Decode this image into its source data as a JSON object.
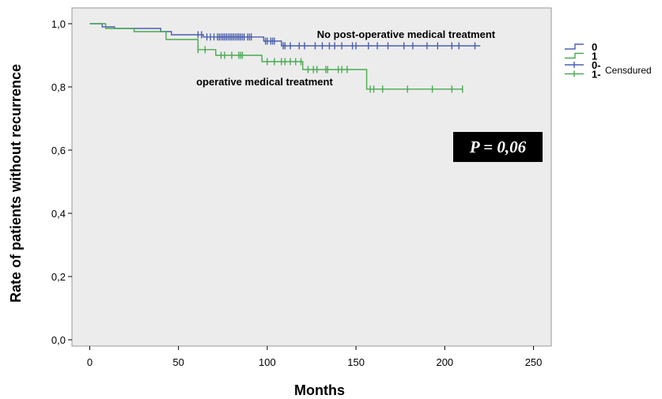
{
  "chart_data": {
    "type": "line",
    "xlabel": "Months",
    "ylabel": "Rate of patients without recurrence",
    "xlim": [
      -10,
      260
    ],
    "ylim": [
      -0.02,
      1.05
    ],
    "x_ticks": [
      0,
      50,
      100,
      150,
      200,
      250
    ],
    "y_ticks": [
      0.0,
      0.2,
      0.4,
      0.6,
      0.8,
      1.0
    ],
    "x_tick_labels": [
      "0",
      "50",
      "100",
      "150",
      "200",
      "250"
    ],
    "y_tick_labels": [
      "0,0",
      "0,2",
      "0,4",
      "0,6",
      "0,8",
      "1,0"
    ],
    "grid": false,
    "background": "#ececec",
    "series": [
      {
        "name": "0",
        "color": "#4a5fb0",
        "steps": [
          [
            0,
            1.0
          ],
          [
            7,
            0.99
          ],
          [
            14,
            0.985
          ],
          [
            40,
            0.975
          ],
          [
            46,
            0.965
          ],
          [
            64,
            0.958
          ],
          [
            98,
            0.945
          ],
          [
            108,
            0.93
          ],
          [
            220,
            0.93
          ]
        ],
        "censored": [
          61,
          63,
          66,
          68,
          70,
          72,
          73,
          74,
          75,
          76,
          77,
          78,
          79,
          80,
          81,
          82,
          83,
          84,
          85,
          86,
          87,
          89,
          90,
          91,
          99,
          100,
          102,
          103,
          104,
          109,
          110,
          113,
          118,
          121,
          127,
          131,
          135,
          138,
          142,
          148,
          150,
          157,
          162,
          168,
          177,
          182,
          190,
          196,
          204,
          208,
          217
        ]
      },
      {
        "name": "1",
        "color": "#4aaa52",
        "steps": [
          [
            0,
            1.0
          ],
          [
            9,
            0.985
          ],
          [
            25,
            0.975
          ],
          [
            43,
            0.95
          ],
          [
            61,
            0.918
          ],
          [
            71,
            0.9
          ],
          [
            97,
            0.88
          ],
          [
            120,
            0.855
          ],
          [
            156,
            0.793
          ],
          [
            210,
            0.793
          ]
        ],
        "censored": [
          61,
          65,
          74,
          76,
          80,
          84,
          85,
          86,
          100,
          104,
          108,
          110,
          113,
          116,
          119,
          123,
          126,
          128,
          133,
          134,
          140,
          142,
          145,
          158,
          160,
          165,
          179,
          193,
          204,
          210
        ]
      }
    ],
    "legend": {
      "placement": "right",
      "entries": [
        {
          "label": "0",
          "color": "#4a5fb0",
          "kind": "line"
        },
        {
          "label": "1",
          "color": "#4aaa52",
          "kind": "line"
        },
        {
          "label": "0-",
          "color": "#4a5fb0",
          "kind": "censored"
        },
        {
          "label": "1-",
          "color": "#4aaa52",
          "kind": "censored"
        }
      ],
      "censored_label": "Censdured"
    },
    "annotations": [
      {
        "text": "No post-operative  medical treatment",
        "x": 128,
        "y": 0.955
      },
      {
        "text": "operative medical treatment",
        "x": 60,
        "y": 0.805
      }
    ],
    "p_value_label": "P = 0,06"
  }
}
